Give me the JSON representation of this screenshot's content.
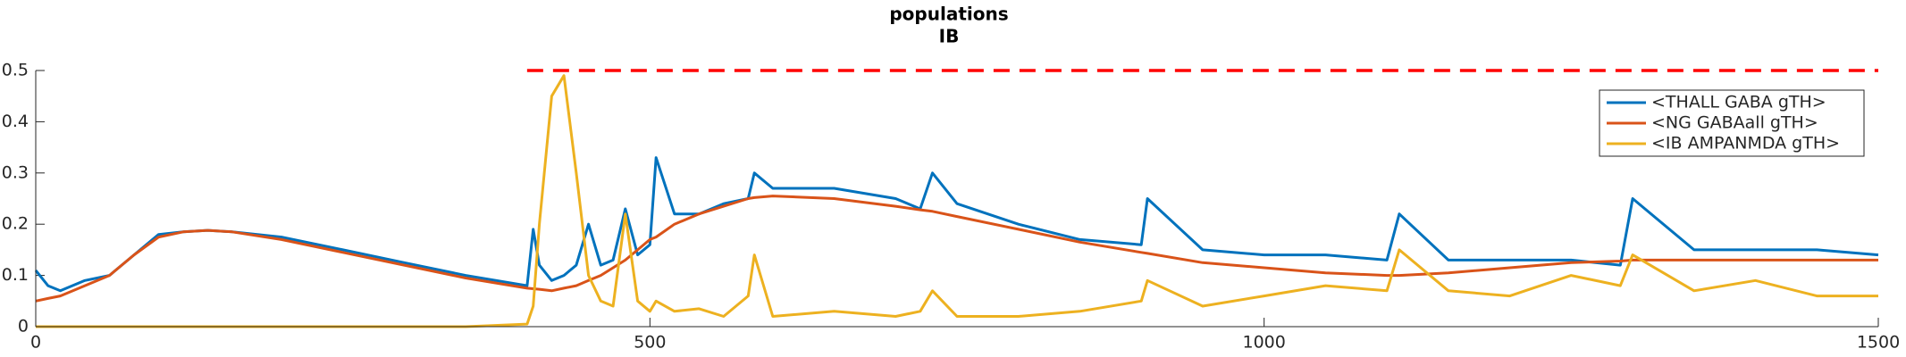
{
  "chart_data": {
    "type": "line",
    "title": "populations",
    "subtitle": "IB",
    "x": [
      0,
      10,
      20,
      40,
      60,
      80,
      100,
      120,
      140,
      160,
      200,
      250,
      300,
      350,
      400,
      405,
      410,
      420,
      430,
      440,
      450,
      460,
      470,
      480,
      490,
      500,
      505,
      520,
      540,
      560,
      580,
      585,
      600,
      650,
      700,
      720,
      730,
      750,
      800,
      850,
      900,
      905,
      950,
      1000,
      1050,
      1100,
      1110,
      1150,
      1200,
      1250,
      1290,
      1300,
      1350,
      1400,
      1450,
      1500
    ],
    "series": [
      {
        "name": "<THALL GABA gTH>",
        "color": "#0072bd",
        "values": [
          0.11,
          0.08,
          0.07,
          0.09,
          0.1,
          0.14,
          0.18,
          0.185,
          0.188,
          0.185,
          0.175,
          0.15,
          0.125,
          0.1,
          0.08,
          0.19,
          0.12,
          0.09,
          0.1,
          0.12,
          0.2,
          0.12,
          0.13,
          0.23,
          0.14,
          0.16,
          0.33,
          0.22,
          0.22,
          0.24,
          0.25,
          0.3,
          0.27,
          0.27,
          0.25,
          0.23,
          0.3,
          0.24,
          0.2,
          0.17,
          0.16,
          0.25,
          0.15,
          0.14,
          0.14,
          0.13,
          0.22,
          0.13,
          0.13,
          0.13,
          0.12,
          0.25,
          0.15,
          0.15,
          0.15,
          0.14
        ]
      },
      {
        "name": "<NG GABAall gTH>",
        "color": "#d95319",
        "values": [
          0.05,
          0.055,
          0.06,
          0.08,
          0.1,
          0.14,
          0.175,
          0.185,
          0.188,
          0.185,
          0.17,
          0.145,
          0.12,
          0.095,
          0.075,
          0.074,
          0.073,
          0.07,
          0.075,
          0.08,
          0.09,
          0.1,
          0.115,
          0.13,
          0.15,
          0.17,
          0.175,
          0.2,
          0.22,
          0.235,
          0.25,
          0.252,
          0.255,
          0.25,
          0.235,
          0.228,
          0.225,
          0.215,
          0.19,
          0.165,
          0.145,
          0.143,
          0.125,
          0.115,
          0.105,
          0.1,
          0.1,
          0.105,
          0.115,
          0.125,
          0.128,
          0.13,
          0.13,
          0.13,
          0.13,
          0.13
        ]
      },
      {
        "name": "<IB AMPANMDA gTH>",
        "color": "#edb120",
        "values": [
          0,
          0,
          0,
          0,
          0,
          0,
          0,
          0,
          0,
          0,
          0,
          0,
          0,
          0,
          0.005,
          0.04,
          0.2,
          0.45,
          0.49,
          0.3,
          0.1,
          0.05,
          0.04,
          0.22,
          0.05,
          0.03,
          0.05,
          0.03,
          0.035,
          0.02,
          0.06,
          0.14,
          0.02,
          0.03,
          0.02,
          0.03,
          0.07,
          0.02,
          0.02,
          0.03,
          0.05,
          0.09,
          0.04,
          0.06,
          0.08,
          0.07,
          0.15,
          0.07,
          0.06,
          0.1,
          0.08,
          0.14,
          0.07,
          0.09,
          0.06,
          0.06
        ]
      }
    ],
    "reference_line": {
      "x": [
        400,
        1500
      ],
      "y": 0.5,
      "color": "#ff0000"
    },
    "xlim": [
      0,
      1500
    ],
    "xticks": [
      0,
      500,
      1000,
      1500
    ],
    "ylim": [
      0,
      0.5
    ],
    "yticks": [
      0,
      0.1,
      0.2,
      0.3,
      0.4,
      0.5
    ],
    "legend": "northeast"
  }
}
